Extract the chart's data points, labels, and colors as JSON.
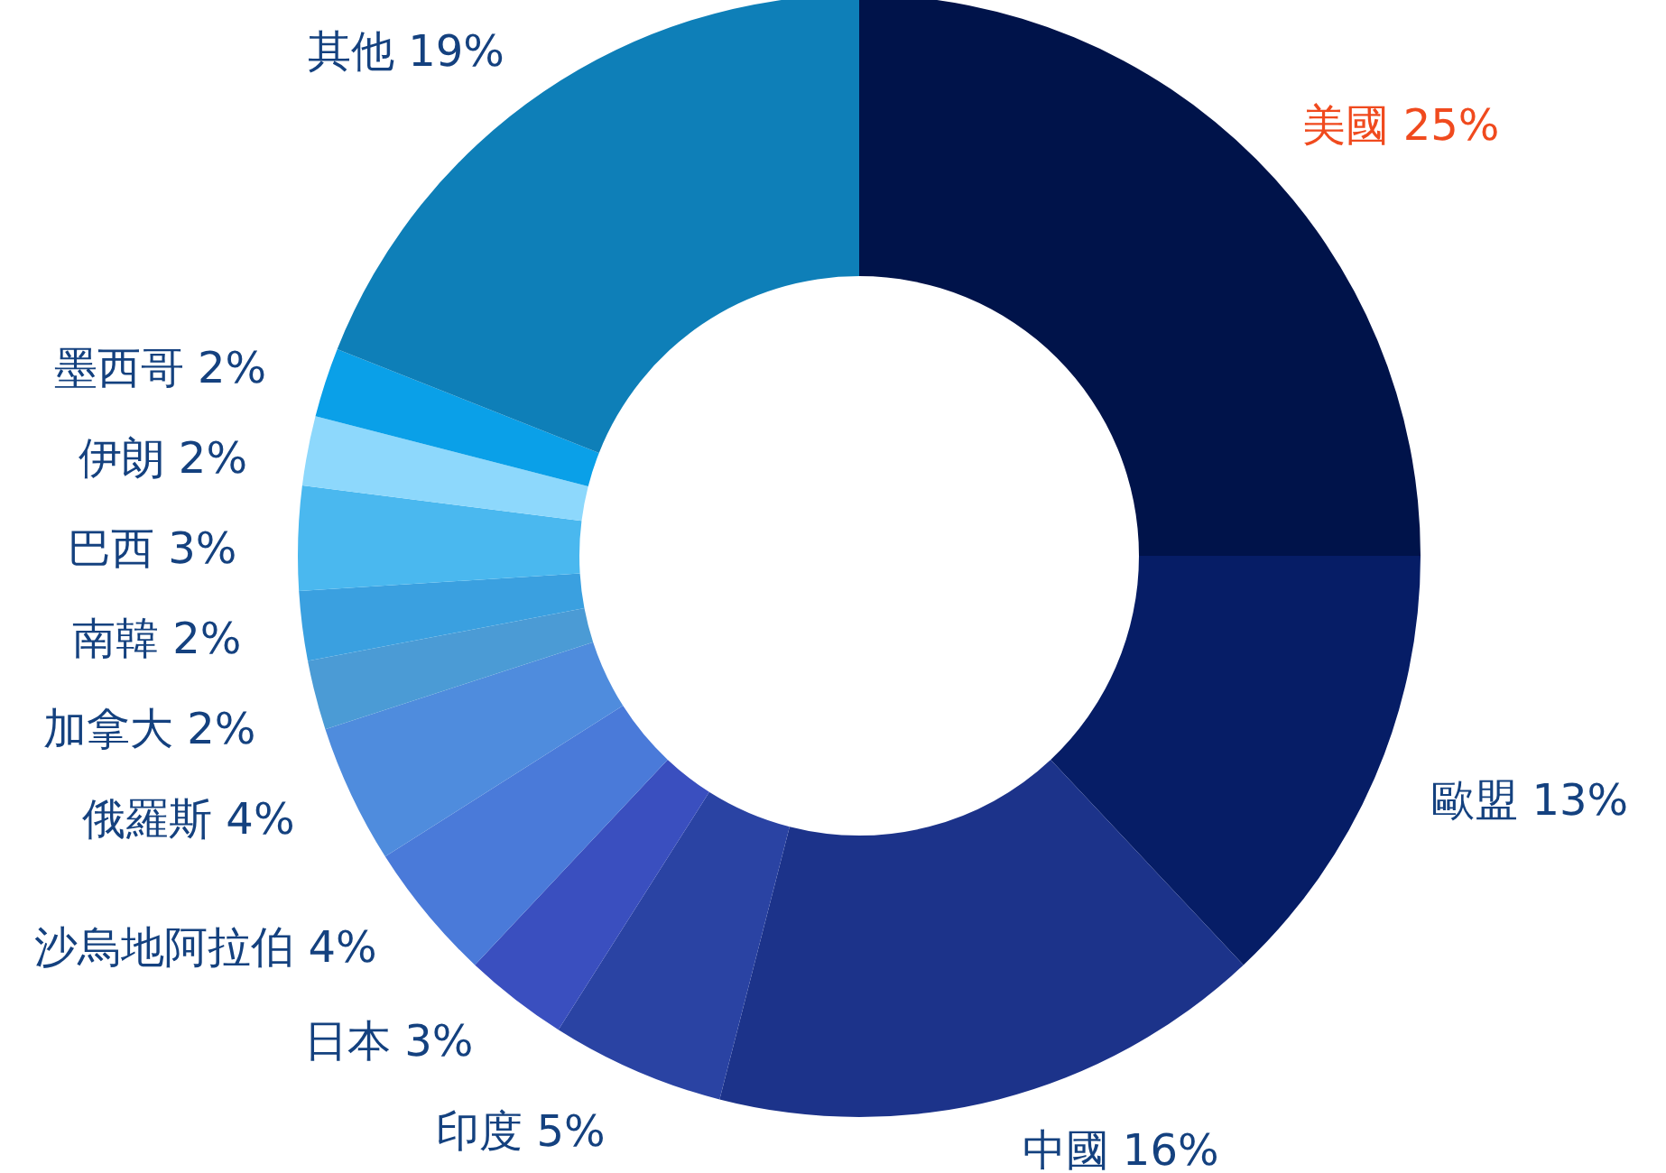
{
  "chart_data": {
    "type": "donut",
    "categories": [
      "美國",
      "歐盟",
      "中國",
      "印度",
      "日本",
      "沙烏地阿拉伯",
      "俄羅斯",
      "加拿大",
      "南韓",
      "巴西",
      "伊朗",
      "墨西哥",
      "其他"
    ],
    "values": [
      25,
      13,
      16,
      5,
      3,
      4,
      4,
      2,
      2,
      3,
      2,
      2,
      19
    ],
    "value_labels": [
      "25%",
      "13%",
      "16%",
      "5%",
      "3%",
      "4%",
      "4%",
      "2%",
      "2%",
      "3%",
      "2%",
      "2%",
      "19%"
    ],
    "colors": [
      "#00134a",
      "#061d66",
      "#1c338a",
      "#2a43a3",
      "#3a4fbf",
      "#4a7ad9",
      "#4f8cdd",
      "#4b9bd5",
      "#3aa0e0",
      "#4ab8ef",
      "#8dd8fc",
      "#0aa0e8",
      "#0e7fb8"
    ]
  }
}
